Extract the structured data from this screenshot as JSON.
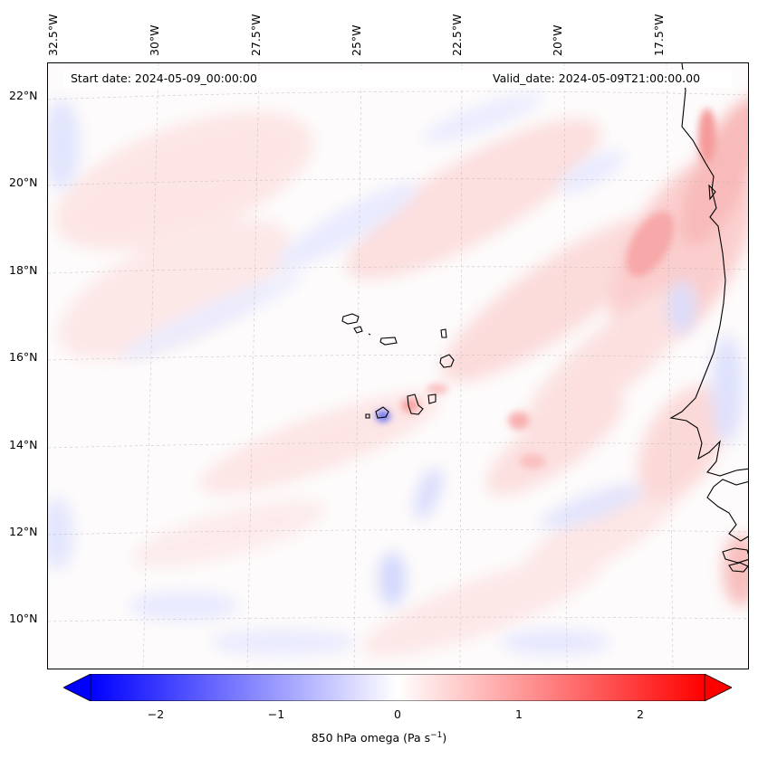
{
  "header": {
    "start_date": "Start date: 2024-05-09_00:00:00",
    "valid_date": "Valid_date: 2024-05-09T21:00:00.00"
  },
  "axes": {
    "lon_labels": [
      "32.5°W",
      "30°W",
      "27.5°W",
      "25°W",
      "22.5°W",
      "20°W",
      "17.5°W"
    ],
    "lat_labels": [
      "22°N",
      "20°N",
      "18°N",
      "16°N",
      "14°N",
      "12°N",
      "10°N"
    ]
  },
  "colorbar": {
    "label": "850 hPa omega (Pa s",
    "label_sup": "−1",
    "label_end": ")",
    "ticks": [
      "−2",
      "−1",
      "0",
      "1",
      "2"
    ],
    "vmin": -2.6,
    "vmax": 2.6,
    "negative_color": "#0000ff",
    "mid_color": "#ffffff",
    "positive_color": "#ff0000"
  },
  "map": {
    "coastline_color": "#000000",
    "gridline_color": "#bbbbbb"
  }
}
